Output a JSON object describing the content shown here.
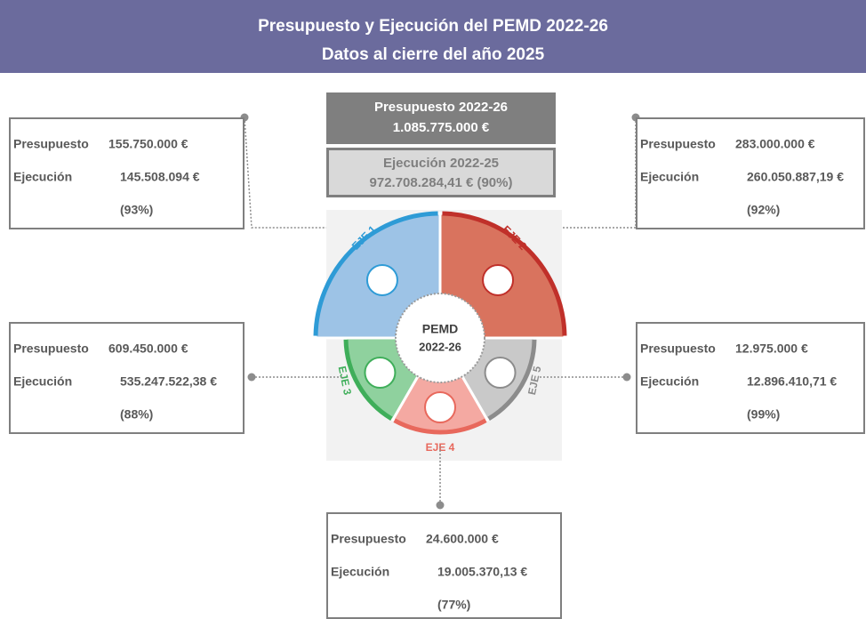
{
  "header": {
    "title_line1": "Presupuesto y Ejecución del PEMD 2022-26",
    "title_line2": "Datos al cierre del año 2025"
  },
  "summary": {
    "budget_label": "Presupuesto 2022-26",
    "budget_value": "1.085.775.000 €",
    "execution_label": "Ejecución 2022-25",
    "execution_value": "972.708.284,41 € (90%)"
  },
  "center": {
    "line1": "PEMD",
    "line2": "2022-26"
  },
  "axes": [
    {
      "label": "EJE 1",
      "presupuesto_label": "Presupuesto",
      "presupuesto": "155.750.000 €",
      "ejecucion_label": "Ejecución",
      "ejecucion": "145.508.094 €",
      "percent": "(93%)"
    },
    {
      "label": "EJE 2",
      "presupuesto_label": "Presupuesto",
      "presupuesto": "283.000.000 €",
      "ejecucion_label": "Ejecución",
      "ejecucion": "260.050.887,19 €",
      "percent": "(92%)"
    },
    {
      "label": "EJE 3",
      "presupuesto_label": "Presupuesto",
      "presupuesto": "609.450.000 €",
      "ejecucion_label": "Ejecución",
      "ejecucion": "535.247.522,38 €",
      "percent": "(88%)"
    },
    {
      "label": "EJE 4",
      "presupuesto_label": "Presupuesto",
      "presupuesto": "24.600.000 €",
      "ejecucion_label": "Ejecución",
      "ejecucion": "19.005.370,13 €",
      "percent": "(77%)"
    },
    {
      "label": "EJE 5",
      "presupuesto_label": "Presupuesto",
      "presupuesto": "12.975.000 €",
      "ejecucion_label": "Ejecución",
      "ejecucion": "12.896.410,71 €",
      "percent": "(99%)"
    }
  ]
}
